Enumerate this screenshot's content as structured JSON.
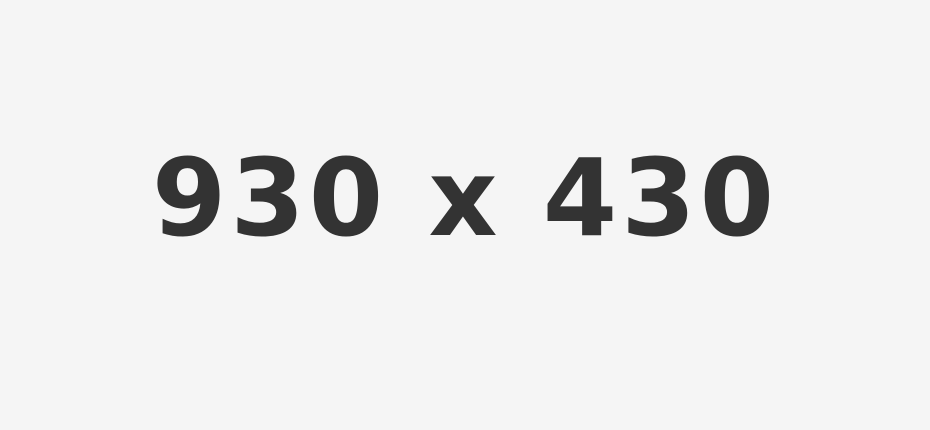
{
  "placeholder": {
    "text": "930 x 430"
  },
  "colors": {
    "background": "#f5f5f5",
    "text": "#333333"
  }
}
